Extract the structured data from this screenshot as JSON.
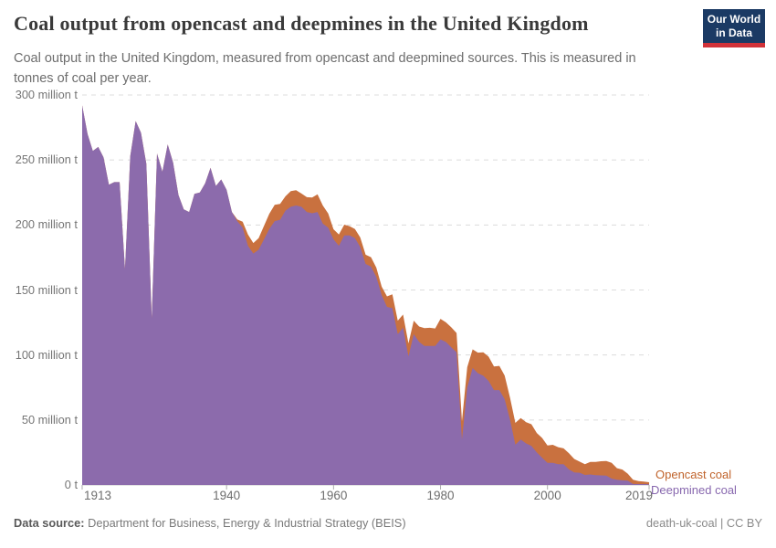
{
  "header": {
    "title": "Coal output from opencast and deepmines in the United Kingdom",
    "subtitle": "Coal output in the United Kingdom, measured from opencast and deepmined sources. This is measured in tonnes of coal per year.",
    "logo": {
      "line1": "Our World",
      "line2": "in Data"
    }
  },
  "footer": {
    "data_source_label": "Data source:",
    "data_source_value": "Department for Business, Energy & Industrial Strategy (BEIS)",
    "credit": "death-uk-coal | CC BY"
  },
  "colors": {
    "logo_bg": "#1b3a64",
    "logo_bar": "#d13239",
    "legend_opencast": "#c0632b",
    "legend_deepmined": "#8767ae",
    "gridline": "#dcdcdc",
    "axis_line": "#c8c8c8"
  },
  "chart_data": {
    "type": "area",
    "stacked": true,
    "title": "Coal output from opencast and deepmines in the United Kingdom",
    "unit": "tonnes of coal per year",
    "xlabel": "",
    "ylabel": "",
    "grid": "dashed-horizontal",
    "legend_position": "right-of-last-point",
    "xlim": [
      1913,
      2019
    ],
    "ylim": [
      0,
      300
    ],
    "xticks": [
      1913,
      1940,
      1960,
      1980,
      2000,
      2019
    ],
    "yticks": [
      {
        "value": 0,
        "label": "0 t"
      },
      {
        "value": 50,
        "label": "50 million t"
      },
      {
        "value": 100,
        "label": "100 million t"
      },
      {
        "value": 150,
        "label": "150 million t"
      },
      {
        "value": 200,
        "label": "200 million t"
      },
      {
        "value": 250,
        "label": "250 million t"
      },
      {
        "value": 300,
        "label": "300 million t"
      }
    ],
    "x": [
      1913,
      1914,
      1915,
      1916,
      1917,
      1918,
      1919,
      1920,
      1921,
      1922,
      1923,
      1924,
      1925,
      1926,
      1927,
      1928,
      1929,
      1930,
      1931,
      1932,
      1933,
      1934,
      1935,
      1936,
      1937,
      1938,
      1939,
      1940,
      1941,
      1942,
      1943,
      1944,
      1945,
      1946,
      1947,
      1948,
      1949,
      1950,
      1951,
      1952,
      1953,
      1954,
      1955,
      1956,
      1957,
      1958,
      1959,
      1960,
      1961,
      1962,
      1963,
      1964,
      1965,
      1966,
      1967,
      1968,
      1969,
      1970,
      1971,
      1972,
      1973,
      1974,
      1975,
      1976,
      1977,
      1978,
      1979,
      1980,
      1981,
      1982,
      1983,
      1984,
      1985,
      1986,
      1987,
      1988,
      1989,
      1990,
      1991,
      1992,
      1993,
      1994,
      1995,
      1996,
      1997,
      1998,
      1999,
      2000,
      2001,
      2002,
      2003,
      2004,
      2005,
      2006,
      2007,
      2008,
      2009,
      2010,
      2011,
      2012,
      2013,
      2014,
      2015,
      2016,
      2017,
      2018,
      2019
    ],
    "series": [
      {
        "name": "Deepmined coal",
        "color": "#8c6bac",
        "values": [
          292,
          270,
          257,
          260,
          252,
          231,
          233,
          233,
          166,
          253,
          280,
          271,
          247,
          128,
          255,
          241,
          262,
          248,
          223,
          212,
          210,
          224,
          225,
          232,
          244,
          230,
          235,
          227,
          210,
          203,
          198,
          184,
          178,
          181,
          189,
          197,
          203,
          204,
          211,
          214,
          215,
          214,
          210,
          209,
          210,
          201,
          198,
          189,
          184,
          192,
          192,
          190,
          183,
          170,
          168,
          160,
          146,
          137,
          136,
          116,
          121,
          99,
          116,
          110,
          107,
          107,
          107,
          112,
          110,
          106,
          102,
          35,
          75,
          90,
          86,
          84,
          80,
          73,
          73,
          66,
          50,
          31,
          35,
          32,
          30,
          25,
          21,
          17,
          17,
          16,
          16,
          12,
          9.6,
          9.4,
          7.7,
          8.1,
          7.5,
          7.4,
          7.2,
          4.9,
          4.1,
          3.6,
          3.4,
          0.8,
          0.7,
          0.7,
          0.5
        ]
      },
      {
        "name": "Opencast coal",
        "color": "#c9713f",
        "values": [
          0,
          0,
          0,
          0,
          0,
          0,
          0,
          0,
          0,
          0,
          0,
          0,
          0,
          0,
          0,
          0,
          0,
          0,
          0,
          0,
          0,
          0,
          0,
          0,
          0,
          0,
          0,
          0,
          0,
          1.3,
          4.5,
          8.7,
          8.1,
          8.9,
          10.3,
          11.7,
          12.5,
          12.2,
          11,
          12.1,
          11.8,
          10.2,
          11.4,
          12.1,
          13.6,
          14,
          10.9,
          7.7,
          8.7,
          8.2,
          7.1,
          6.9,
          7.4,
          7.1,
          7.2,
          7.2,
          6.5,
          8.1,
          10.6,
          10.4,
          10.1,
          9.9,
          10.4,
          11.9,
          13.6,
          13.9,
          13.4,
          15.8,
          15.1,
          15.3,
          14.9,
          14.1,
          15.6,
          14.3,
          15.8,
          18.1,
          18.7,
          18.1,
          18.6,
          18.2,
          17,
          16.8,
          16.4,
          16.3,
          16.7,
          15,
          15.2,
          13.4,
          13.9,
          13.1,
          12.2,
          12.5,
          10.4,
          8.6,
          8.3,
          9.6,
          10.3,
          10.9,
          11.3,
          12.1,
          8.8,
          8.3,
          5.3,
          3.3,
          2.3,
          2,
          1.6
        ]
      }
    ]
  }
}
